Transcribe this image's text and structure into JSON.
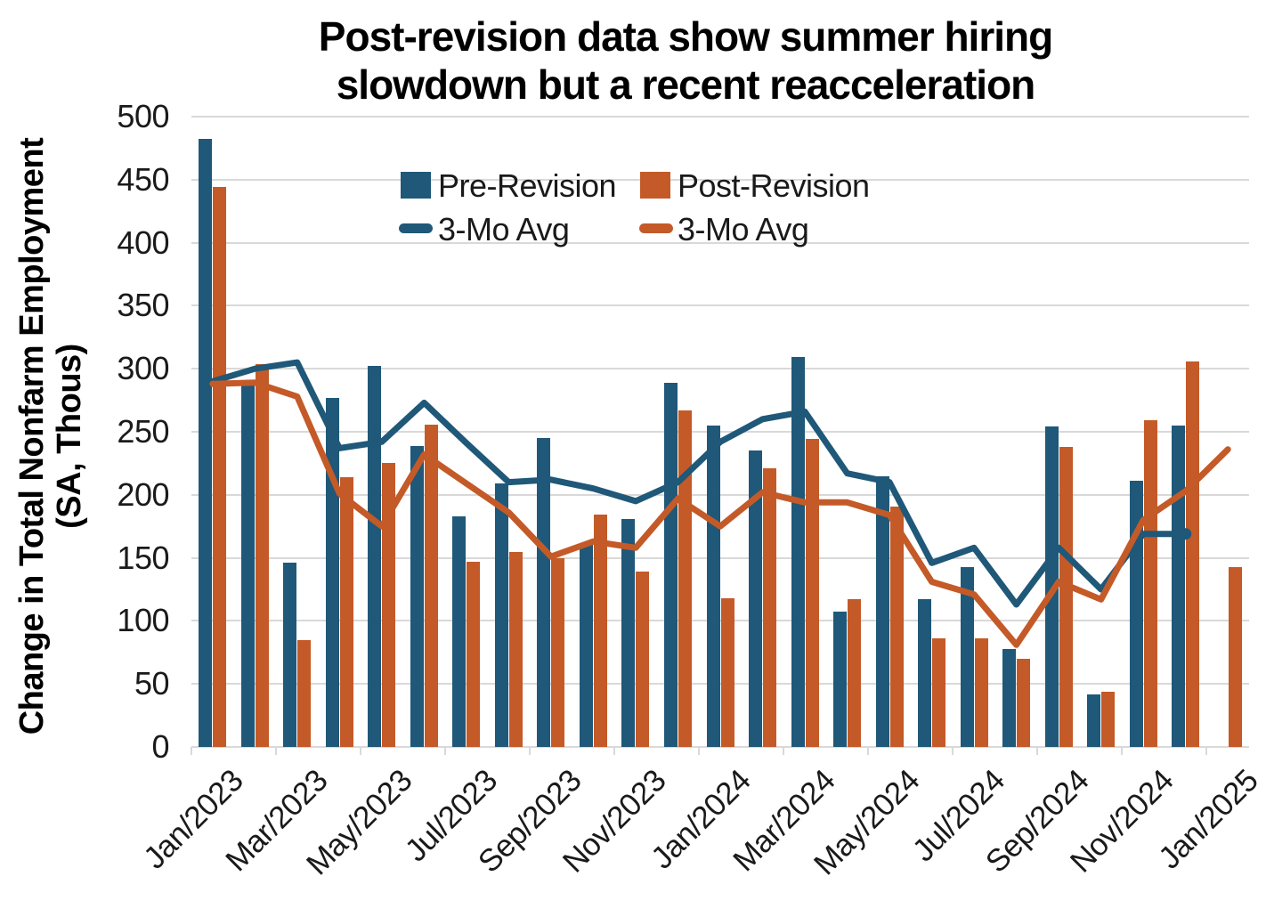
{
  "title": {
    "line1": "Post-revision data show summer hiring",
    "line2": "slowdown but a recent reacceleration"
  },
  "y_axis": {
    "title_line1": "Change in Total Nonfarm Employment",
    "title_line2": "(SA, Thous)"
  },
  "legend": [
    {
      "label": "Pre-Revision",
      "type": "bar",
      "color": "#1F5878"
    },
    {
      "label": "Post-Revision",
      "type": "bar",
      "color": "#C45A28"
    },
    {
      "label": "3-Mo Avg",
      "type": "line",
      "color": "#1F5878"
    },
    {
      "label": "3-Mo Avg",
      "type": "line",
      "color": "#C45A28"
    }
  ],
  "colors": {
    "pre_revision": "#1F5878",
    "post_revision": "#C45A28",
    "gridline": "#d9d9d9",
    "text": "#1a1a1a"
  },
  "chart_data": {
    "type": "bar+line",
    "title": "Post-revision data show summer hiring slowdown but a recent reacceleration",
    "ylabel": "Change in Total Nonfarm Employment (SA, Thous)",
    "xlabel": "",
    "ylim": [
      0,
      500
    ],
    "y_ticks": [
      0,
      50,
      100,
      150,
      200,
      250,
      300,
      350,
      400,
      450,
      500
    ],
    "grid": "horizontal",
    "legend_position": "top-inside",
    "months": [
      "Jan/2023",
      "Feb/2023",
      "Mar/2023",
      "Apr/2023",
      "May/2023",
      "Jun/2023",
      "Jul/2023",
      "Aug/2023",
      "Sep/2023",
      "Oct/2023",
      "Nov/2023",
      "Dec/2023",
      "Jan/2024",
      "Feb/2024",
      "Mar/2024",
      "Apr/2024",
      "May/2024",
      "Jun/2024",
      "Jul/2024",
      "Aug/2024",
      "Sep/2024",
      "Oct/2024",
      "Nov/2024",
      "Dec/2024",
      "Jan/2025"
    ],
    "x_tick_labels": [
      "Jan/2023",
      "Mar/2023",
      "May/2023",
      "Jul/2023",
      "Sep/2023",
      "Nov/2023",
      "Jan/2024",
      "Mar/2024",
      "May/2024",
      "Jul/2024",
      "Sep/2024",
      "Nov/2024",
      "Jan/2025"
    ],
    "bar_series": [
      {
        "name": "Pre-Revision",
        "color": "#1F5878",
        "values": [
          482,
          287,
          146,
          277,
          302,
          239,
          183,
          209,
          245,
          160,
          181,
          289,
          255,
          235,
          309,
          107,
          215,
          117,
          143,
          78,
          254,
          42,
          211,
          255,
          null
        ]
      },
      {
        "name": "Post-Revision",
        "color": "#C45A28",
        "values": [
          444,
          304,
          85,
          214,
          225,
          256,
          147,
          155,
          150,
          184,
          139,
          267,
          118,
          221,
          244,
          117,
          191,
          86,
          86,
          70,
          238,
          44,
          259,
          306,
          143
        ]
      }
    ],
    "line_series": [
      {
        "name": "3-Mo Avg (Pre-Revision)",
        "color": "#1F5878",
        "end_dot": true,
        "values": [
          290,
          300,
          305,
          237,
          242,
          273,
          241,
          210,
          212,
          205,
          195,
          210,
          242,
          260,
          266,
          217,
          210,
          146,
          158,
          113,
          158,
          125,
          169,
          169,
          null
        ]
      },
      {
        "name": "3-Mo Avg (Post-Revision)",
        "color": "#C45A28",
        "end_dot": false,
        "values": [
          288,
          289,
          278,
          201,
          175,
          232,
          209,
          186,
          151,
          163,
          158,
          197,
          175,
          202,
          194,
          194,
          184,
          131,
          121,
          81,
          131,
          117,
          180,
          203,
          236
        ]
      }
    ]
  }
}
